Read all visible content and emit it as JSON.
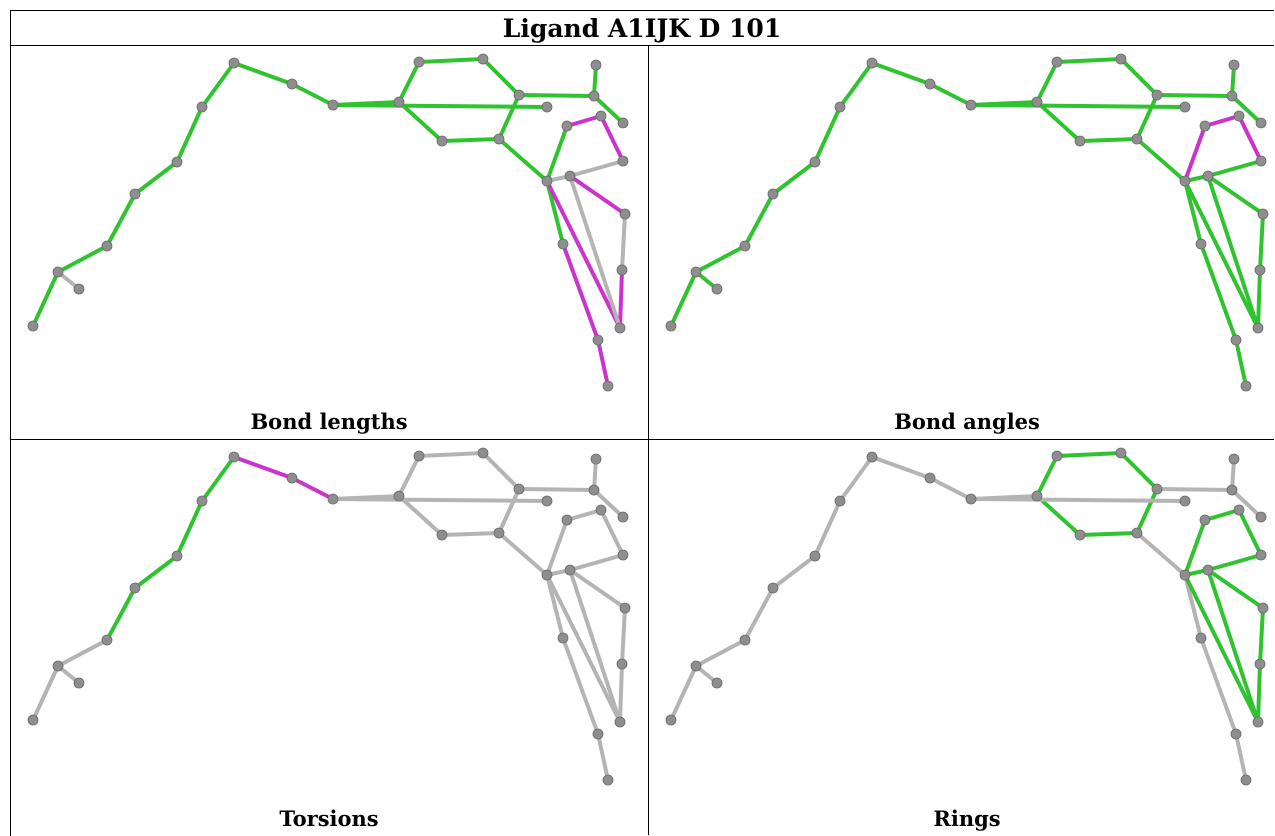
{
  "title": "Ligand A1IJK D 101",
  "colors": {
    "ok": "#2fc42f",
    "outlier": "#cc33cc",
    "neutral": "#b4b4b4",
    "atom": "#8e8e8e"
  },
  "panels": [
    {
      "label": "Bond lengths",
      "outlier_bonds": [
        [
          17,
          18
        ],
        [
          18,
          19
        ],
        [
          19,
          20
        ],
        [
          20,
          25
        ],
        [
          25,
          26
        ],
        [
          16,
          24
        ],
        [
          23,
          24
        ],
        [
          21,
          23
        ],
        [
          22,
          21
        ]
      ],
      "neutral_bonds": [
        [
          1,
          2
        ],
        [
          19,
          21
        ],
        [
          22,
          23
        ],
        [
          21,
          24
        ],
        [
          16,
          21
        ]
      ]
    },
    {
      "label": "Bond angles",
      "outlier_bonds": [
        [
          17,
          18
        ],
        [
          18,
          19
        ],
        [
          19,
          20
        ],
        [
          16,
          17
        ]
      ],
      "neutral_bonds": []
    },
    {
      "label": "Torsions",
      "outlier_bonds": [
        [
          7,
          8
        ],
        [
          8,
          9
        ]
      ],
      "neutral_bonds": [
        [
          0,
          1
        ],
        [
          1,
          2
        ],
        [
          1,
          3
        ],
        [
          10,
          11
        ],
        [
          11,
          12
        ],
        [
          12,
          13
        ],
        [
          13,
          14
        ],
        [
          9,
          10
        ],
        [
          14,
          15
        ],
        [
          16,
          17
        ],
        [
          17,
          18
        ],
        [
          18,
          19
        ],
        [
          19,
          20
        ],
        [
          19,
          21
        ],
        [
          21,
          22
        ],
        [
          21,
          24
        ],
        [
          22,
          23
        ],
        [
          23,
          24
        ],
        [
          16,
          21
        ],
        [
          20,
          25
        ],
        [
          25,
          26
        ],
        [
          16,
          24
        ],
        [
          26,
          27
        ],
        [
          26,
          28
        ],
        [
          15,
          28
        ],
        [
          28,
          29
        ],
        [
          28,
          30
        ]
      ],
      "ok_bonds": [
        [
          2,
          3
        ],
        [
          3,
          4
        ],
        [
          4,
          5
        ],
        [
          5,
          6
        ],
        [
          6,
          7
        ],
        [
          9,
          10
        ],
        [
          15,
          16
        ],
        [
          14,
          28
        ]
      ]
    },
    {
      "label": "Rings",
      "outlier_bonds": [],
      "neutral_bonds": [
        [
          0,
          1
        ],
        [
          1,
          2
        ],
        [
          1,
          3
        ],
        [
          2,
          3
        ],
        [
          3,
          4
        ],
        [
          4,
          5
        ],
        [
          5,
          6
        ],
        [
          6,
          7
        ],
        [
          7,
          8
        ],
        [
          8,
          9
        ],
        [
          9,
          10
        ],
        [
          14,
          28
        ],
        [
          28,
          29
        ],
        [
          28,
          30
        ],
        [
          15,
          16
        ],
        [
          20,
          25
        ],
        [
          25,
          26
        ],
        [
          26,
          27
        ],
        [
          26,
          28
        ]
      ],
      "ok_bonds": [
        [
          10,
          11
        ],
        [
          11,
          12
        ],
        [
          12,
          13
        ],
        [
          13,
          14
        ],
        [
          14,
          15
        ],
        [
          15,
          10
        ],
        [
          16,
          17
        ],
        [
          17,
          18
        ],
        [
          18,
          19
        ],
        [
          19,
          21
        ],
        [
          21,
          16
        ],
        [
          19,
          20
        ],
        [
          20,
          25
        ],
        [
          25,
          26
        ],
        [
          21,
          22
        ],
        [
          22,
          23
        ],
        [
          23,
          24
        ],
        [
          24,
          16
        ],
        [
          21,
          24
        ]
      ]
    }
  ]
}
